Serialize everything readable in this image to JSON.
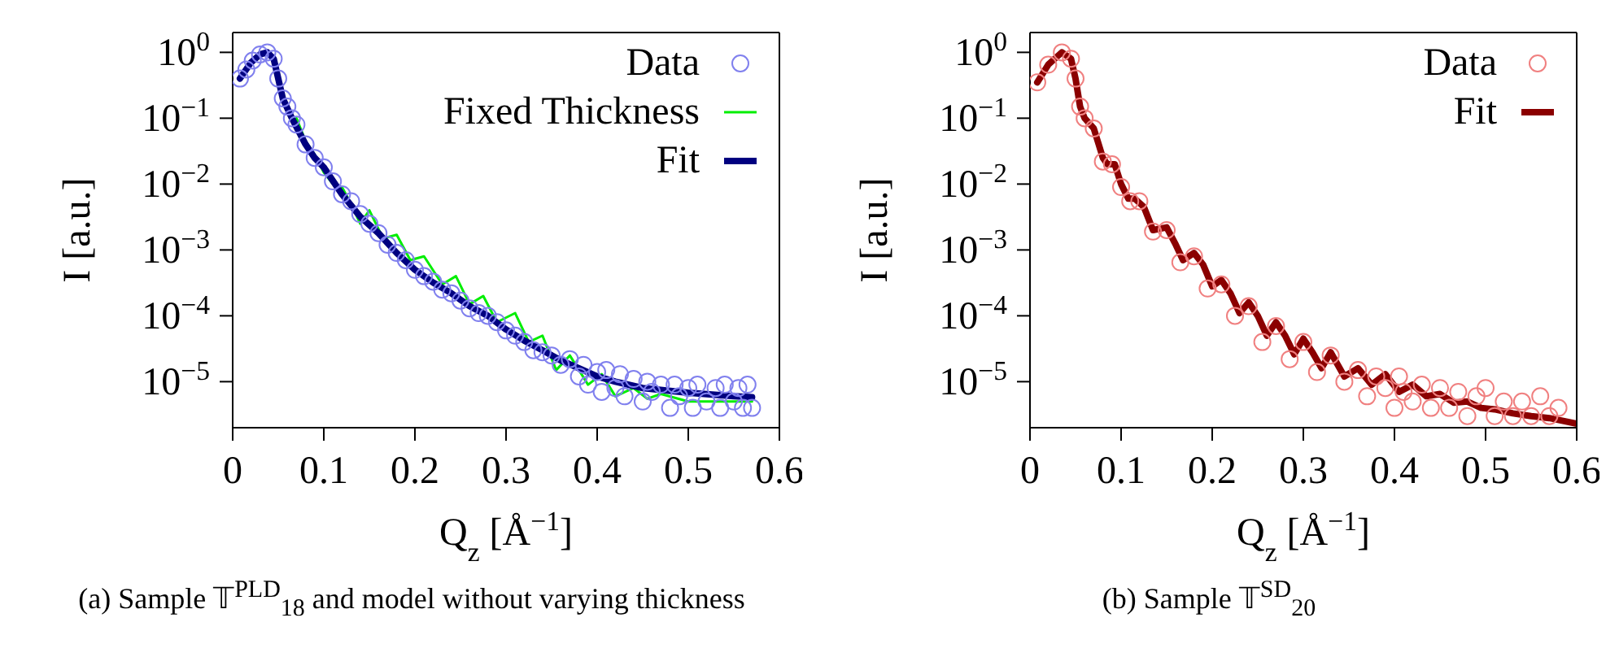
{
  "chart_data": [
    {
      "type": "line",
      "xlabel": "Q$_{z}$ [Å$^{−1}$]",
      "ylabel": "I [a.u.]",
      "log": "y",
      "legend": "top right",
      "xlim": [
        0,
        0.6
      ],
      "xticks": [
        0,
        0.1,
        0.2,
        0.3,
        0.4,
        0.5,
        0.6
      ],
      "ylim": [
        2e-06,
        2
      ],
      "yticks": [
        {
          "value": 1,
          "label": "10$^{0}$"
        },
        {
          "value": 0.1,
          "label": "10$^{−1}$"
        },
        {
          "value": 0.01,
          "label": "10$^{−2}$"
        },
        {
          "value": 0.001,
          "label": "10$^{−3}$"
        },
        {
          "value": 0.0001,
          "label": "10$^{−4}$"
        },
        {
          "value": 1e-05,
          "label": "10$^{−5}$"
        }
      ],
      "annotations": [
        "(a) Sample 𝕋$^{PLD}$$_{18}$ and model without varying thickness"
      ],
      "tick_labels": true,
      "series": [
        {
          "name": "Data",
          "type": "scatter",
          "marker": "circle",
          "color": "#8080ee",
          "x": [
            0.008,
            0.015,
            0.022,
            0.03,
            0.038,
            0.045,
            0.05,
            0.055,
            0.06,
            0.065,
            0.07,
            0.08,
            0.09,
            0.1,
            0.11,
            0.12,
            0.13,
            0.14,
            0.15,
            0.16,
            0.17,
            0.18,
            0.19,
            0.2,
            0.21,
            0.22,
            0.23,
            0.24,
            0.25,
            0.26,
            0.27,
            0.28,
            0.29,
            0.3,
            0.31,
            0.32,
            0.33,
            0.34,
            0.35,
            0.36,
            0.37,
            0.38,
            0.385,
            0.39,
            0.4,
            0.405,
            0.41,
            0.42,
            0.425,
            0.43,
            0.44,
            0.45,
            0.455,
            0.46,
            0.47,
            0.48,
            0.485,
            0.49,
            0.5,
            0.505,
            0.51,
            0.52,
            0.53,
            0.535,
            0.54,
            0.55,
            0.555,
            0.56,
            0.565,
            0.57
          ],
          "values": [
            0.4,
            0.55,
            0.75,
            0.93,
            1.0,
            0.8,
            0.4,
            0.2,
            0.15,
            0.1,
            0.08,
            0.04,
            0.025,
            0.018,
            0.011,
            0.007,
            0.0055,
            0.0035,
            0.0025,
            0.0018,
            0.0012,
            0.0009,
            0.0007,
            0.0005,
            0.0004,
            0.00033,
            0.00025,
            0.00022,
            0.00017,
            0.00013,
            0.00011,
            0.0001,
            8e-05,
            6e-05,
            5e-05,
            4e-05,
            3e-05,
            2.8e-05,
            2.5e-05,
            1.8e-05,
            2.2e-05,
            1.2e-05,
            1.8e-05,
            9e-06,
            1.4e-05,
            7e-06,
            1.5e-05,
            8e-06,
            1.3e-05,
            6e-06,
            1.1e-05,
            5e-06,
            1e-05,
            7e-06,
            9e-06,
            4e-06,
            9e-06,
            6e-06,
            8e-06,
            4e-06,
            9e-06,
            5e-06,
            8e-06,
            4e-06,
            9e-06,
            5e-06,
            8e-06,
            4e-06,
            9e-06,
            4e-06
          ]
        },
        {
          "name": "Fixed Thickness",
          "marker": "none",
          "color": "#00ee00",
          "x": [
            0.07,
            0.08,
            0.09,
            0.1,
            0.11,
            0.12,
            0.13,
            0.14,
            0.15,
            0.165,
            0.18,
            0.195,
            0.21,
            0.23,
            0.245,
            0.26,
            0.275,
            0.29,
            0.31,
            0.325,
            0.34,
            0.355,
            0.37,
            0.39,
            0.405,
            0.42,
            0.44,
            0.455,
            0.47,
            0.5,
            0.53,
            0.57
          ],
          "values": [
            0.1,
            0.045,
            0.028,
            0.015,
            0.01,
            0.009,
            0.005,
            0.0025,
            0.004,
            0.0015,
            0.0017,
            0.0007,
            0.0008,
            0.0003,
            0.0004,
            0.00015,
            0.0002,
            8e-05,
            0.00011,
            4e-05,
            5e-05,
            1.5e-05,
            2.5e-05,
            9e-06,
            1.3e-05,
            6e-06,
            8e-06,
            5.5e-06,
            6.5e-06,
            5e-06,
            5e-06,
            5e-06
          ]
        },
        {
          "name": "Fit",
          "marker": "none",
          "color": "#000080",
          "x": [
            0.008,
            0.02,
            0.03,
            0.038,
            0.045,
            0.05,
            0.055,
            0.065,
            0.08,
            0.09,
            0.1,
            0.12,
            0.14,
            0.16,
            0.18,
            0.2,
            0.22,
            0.24,
            0.26,
            0.28,
            0.3,
            0.32,
            0.34,
            0.36,
            0.38,
            0.4,
            0.42,
            0.45,
            0.5,
            0.55,
            0.57
          ],
          "values": [
            0.4,
            0.7,
            0.93,
            1.0,
            0.8,
            0.4,
            0.2,
            0.1,
            0.04,
            0.025,
            0.018,
            0.007,
            0.0032,
            0.0018,
            0.0009,
            0.0005,
            0.00032,
            0.00022,
            0.00014,
            0.0001,
            6.2e-05,
            4.2e-05,
            3e-05,
            2.1e-05,
            1.6e-05,
            1.2e-05,
            1e-05,
            8e-06,
            6.8e-06,
            6e-06,
            5.8e-06
          ]
        }
      ]
    },
    {
      "type": "line",
      "xlabel": "Q$_{z}$ [Å$^{−1}$]",
      "ylabel": "I [a.u.]",
      "log": "y",
      "legend": "top right",
      "xlim": [
        0,
        0.6
      ],
      "xticks": [
        0,
        0.1,
        0.2,
        0.3,
        0.4,
        0.5,
        0.6
      ],
      "ylim": [
        2e-06,
        2
      ],
      "yticks": [
        {
          "value": 1,
          "label": "10$^{0}$"
        },
        {
          "value": 0.1,
          "label": "10$^{−1}$"
        },
        {
          "value": 0.01,
          "label": "10$^{−2}$"
        },
        {
          "value": 0.001,
          "label": "10$^{−3}$"
        },
        {
          "value": 0.0001,
          "label": "10$^{−4}$"
        },
        {
          "value": 1e-05,
          "label": "10$^{−5}$"
        }
      ],
      "annotations": [
        "(b) Sample 𝕋$^{SD}$$_{20}$"
      ],
      "series": [
        {
          "name": "Data",
          "type": "scatter",
          "marker": "circle",
          "color": "#f08080",
          "x": [
            0.008,
            0.02,
            0.035,
            0.045,
            0.05,
            0.055,
            0.06,
            0.07,
            0.08,
            0.09,
            0.1,
            0.11,
            0.12,
            0.135,
            0.15,
            0.165,
            0.18,
            0.195,
            0.21,
            0.225,
            0.24,
            0.255,
            0.27,
            0.285,
            0.3,
            0.315,
            0.33,
            0.345,
            0.36,
            0.37,
            0.38,
            0.39,
            0.4,
            0.405,
            0.41,
            0.42,
            0.43,
            0.44,
            0.45,
            0.46,
            0.47,
            0.48,
            0.49,
            0.5,
            0.51,
            0.52,
            0.53,
            0.54,
            0.55,
            0.56,
            0.57,
            0.58
          ],
          "values": [
            0.35,
            0.65,
            1.0,
            0.8,
            0.4,
            0.15,
            0.1,
            0.07,
            0.022,
            0.02,
            0.009,
            0.0055,
            0.0055,
            0.0019,
            0.002,
            0.00065,
            0.0008,
            0.00026,
            0.0003,
            0.0001,
            0.00014,
            4e-05,
            7e-05,
            2.2e-05,
            4e-05,
            1.4e-05,
            2.5e-05,
            1e-05,
            1.5e-05,
            6e-06,
            1.2e-05,
            8e-06,
            4e-06,
            1.2e-05,
            7e-06,
            5e-06,
            9e-06,
            4e-06,
            8e-06,
            4e-06,
            7e-06,
            3e-06,
            6e-06,
            8e-06,
            3e-06,
            5e-06,
            3e-06,
            5e-06,
            3e-06,
            6e-06,
            3e-06,
            4e-06
          ]
        },
        {
          "name": "Fit",
          "marker": "none",
          "color": "#8b0000",
          "x": [
            0.008,
            0.02,
            0.035,
            0.045,
            0.05,
            0.055,
            0.06,
            0.07,
            0.08,
            0.085,
            0.093,
            0.1,
            0.108,
            0.115,
            0.125,
            0.135,
            0.15,
            0.16,
            0.168,
            0.18,
            0.19,
            0.2,
            0.21,
            0.22,
            0.23,
            0.24,
            0.25,
            0.26,
            0.27,
            0.28,
            0.29,
            0.3,
            0.31,
            0.32,
            0.33,
            0.345,
            0.36,
            0.375,
            0.39,
            0.405,
            0.42,
            0.435,
            0.45,
            0.465,
            0.48,
            0.495,
            0.51,
            0.53,
            0.55,
            0.57,
            0.6
          ],
          "values": [
            0.35,
            0.65,
            1.0,
            0.8,
            0.4,
            0.15,
            0.1,
            0.07,
            0.025,
            0.02,
            0.02,
            0.01,
            0.006,
            0.006,
            0.0045,
            0.002,
            0.0022,
            0.0012,
            0.0007,
            0.0009,
            0.0006,
            0.00028,
            0.00035,
            0.00022,
            0.00011,
            0.00016,
            0.0001,
            5e-05,
            8e-05,
            5e-05,
            2.6e-05,
            4.5e-05,
            2.8e-05,
            1.6e-05,
            2.8e-05,
            1.2e-05,
            1.6e-05,
            9e-06,
            1.3e-05,
            7e-06,
            9e-06,
            6e-06,
            6.5e-06,
            4.8e-06,
            5e-06,
            4e-06,
            3.8e-06,
            3.3e-06,
            3e-06,
            2.8e-06,
            2.3e-06
          ]
        }
      ]
    }
  ]
}
